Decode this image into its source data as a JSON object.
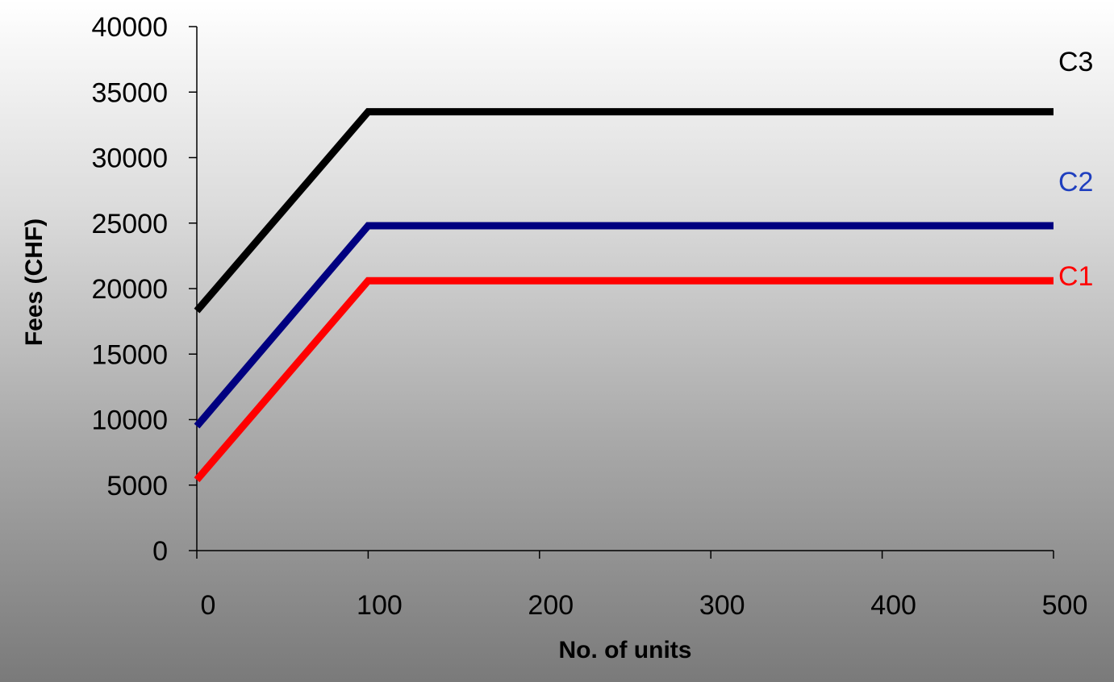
{
  "chart_data": {
    "type": "line",
    "xlabel": "No. of units",
    "ylabel": "Fees (CHF)",
    "xlim": [
      0,
      500
    ],
    "ylim": [
      0,
      40000
    ],
    "x_ticks": [
      "0",
      "100",
      "200",
      "300",
      "400",
      "500"
    ],
    "y_ticks": [
      "0",
      "5000",
      "10000",
      "15000",
      "20000",
      "25000",
      "30000",
      "35000",
      "40000"
    ],
    "grid": false,
    "legend": "labels at right end of lines",
    "series": [
      {
        "name": "C1",
        "color": "#ff0000",
        "x": [
          0,
          100,
          200,
          300,
          400,
          500
        ],
        "y": [
          5400,
          20600,
          20600,
          20600,
          20600,
          20600
        ]
      },
      {
        "name": "C2",
        "color": "#000080",
        "x": [
          0,
          100,
          200,
          300,
          400,
          500
        ],
        "y": [
          9500,
          24800,
          24800,
          24800,
          24800,
          24800
        ]
      },
      {
        "name": "C3",
        "color": "#000000",
        "x": [
          0,
          100,
          200,
          300,
          400,
          500
        ],
        "y": [
          18300,
          33500,
          33500,
          33500,
          33500,
          33500
        ]
      }
    ],
    "series_label_colors": {
      "C1": "#ff0000",
      "C2": "#1f3fbf",
      "C3": "#000000"
    }
  }
}
